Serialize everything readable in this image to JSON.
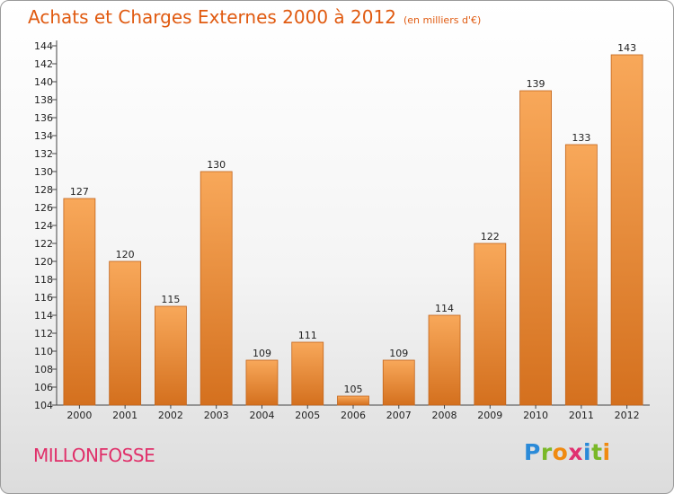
{
  "header": {
    "title": "Achats et Charges Externes 2000 à 2012",
    "unit": "(en milliers d'€)"
  },
  "footer": {
    "commune": "MILLONFOSSE",
    "logo_letters": [
      "P",
      "r",
      "o",
      "x",
      "i",
      "t",
      "i"
    ],
    "logo_colors": [
      "#2a8ad8",
      "#7ab828",
      "#f08a10",
      "#e03070",
      "#2a8ad8",
      "#7ab828",
      "#f08a10"
    ]
  },
  "colors": {
    "title": "#e05a10",
    "commune": "#e0306a",
    "bar_top": "#f8a85a",
    "bar_bottom": "#d4701e"
  },
  "chart_data": {
    "type": "bar",
    "title": "Achats et Charges Externes 2000 à 2012",
    "subtitle": "(en milliers d'€)",
    "xlabel": "",
    "ylabel": "",
    "categories": [
      "2000",
      "2001",
      "2002",
      "2003",
      "2004",
      "2005",
      "2006",
      "2007",
      "2008",
      "2009",
      "2010",
      "2011",
      "2012"
    ],
    "values": [
      127,
      120,
      115,
      130,
      109,
      111,
      105,
      109,
      114,
      122,
      139,
      133,
      143
    ],
    "ylim": [
      104,
      144
    ],
    "yticks": [
      104,
      106,
      108,
      110,
      112,
      114,
      116,
      118,
      120,
      122,
      124,
      126,
      128,
      130,
      132,
      134,
      136,
      138,
      140,
      142,
      144
    ],
    "grid": false,
    "legend": "none",
    "data_labels": true
  }
}
